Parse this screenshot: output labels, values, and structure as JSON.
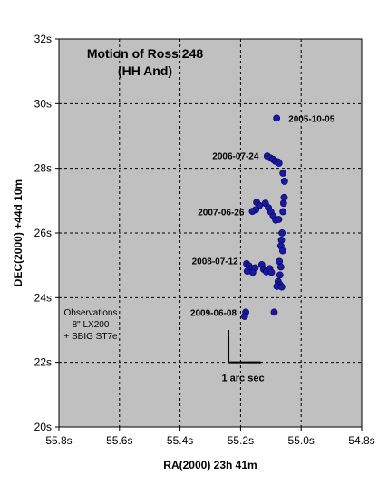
{
  "chart_data": {
    "type": "scatter",
    "title_line1": "Motion of Ross 248",
    "title_line2": "(HH And)",
    "xlabel": "RA(2000) 23h 41m",
    "ylabel": "DEC(2000) +44d 10m",
    "xlim": [
      55.8,
      54.8
    ],
    "ylim": [
      20,
      32
    ],
    "x_reversed": true,
    "x_ticks": [
      55.8,
      55.6,
      55.4,
      55.2,
      55.0,
      54.8
    ],
    "x_tick_labels": [
      "55.8s",
      "55.6s",
      "55.4s",
      "55.2s",
      "55.0s",
      "54.8s"
    ],
    "y_ticks": [
      20,
      22,
      24,
      26,
      28,
      30,
      32
    ],
    "y_tick_labels": [
      "20s",
      "22s",
      "24s",
      "26s",
      "28s",
      "30s",
      "32s"
    ],
    "grid": true,
    "plot_background": "#c0c0c0",
    "marker_color": "#1a1aa0",
    "points": [
      {
        "x": 55.081,
        "y": 29.55
      },
      {
        "x": 55.112,
        "y": 28.38
      },
      {
        "x": 55.102,
        "y": 28.32
      },
      {
        "x": 55.093,
        "y": 28.28
      },
      {
        "x": 55.085,
        "y": 28.22
      },
      {
        "x": 55.077,
        "y": 28.2
      },
      {
        "x": 55.073,
        "y": 28.16
      },
      {
        "x": 55.06,
        "y": 27.85
      },
      {
        "x": 55.055,
        "y": 27.6
      },
      {
        "x": 55.147,
        "y": 26.95
      },
      {
        "x": 55.138,
        "y": 26.85
      },
      {
        "x": 55.15,
        "y": 26.72
      },
      {
        "x": 55.161,
        "y": 26.67
      },
      {
        "x": 55.118,
        "y": 26.92
      },
      {
        "x": 55.108,
        "y": 26.78
      },
      {
        "x": 55.1,
        "y": 26.65
      },
      {
        "x": 55.092,
        "y": 26.52
      },
      {
        "x": 55.084,
        "y": 26.4
      },
      {
        "x": 55.074,
        "y": 26.42
      },
      {
        "x": 55.06,
        "y": 26.66
      },
      {
        "x": 55.058,
        "y": 26.92
      },
      {
        "x": 55.056,
        "y": 27.1
      },
      {
        "x": 55.063,
        "y": 26.0
      },
      {
        "x": 55.065,
        "y": 25.78
      },
      {
        "x": 55.067,
        "y": 25.6
      },
      {
        "x": 55.061,
        "y": 25.45
      },
      {
        "x": 55.072,
        "y": 25.12
      },
      {
        "x": 55.067,
        "y": 24.95
      },
      {
        "x": 55.07,
        "y": 24.7
      },
      {
        "x": 55.076,
        "y": 24.5
      },
      {
        "x": 55.07,
        "y": 24.4
      },
      {
        "x": 55.08,
        "y": 24.35
      },
      {
        "x": 55.064,
        "y": 24.33
      },
      {
        "x": 55.18,
        "y": 25.05
      },
      {
        "x": 55.172,
        "y": 24.98
      },
      {
        "x": 55.167,
        "y": 24.9
      },
      {
        "x": 55.178,
        "y": 24.82
      },
      {
        "x": 55.13,
        "y": 25.02
      },
      {
        "x": 55.124,
        "y": 24.88
      },
      {
        "x": 55.115,
        "y": 24.8
      },
      {
        "x": 55.104,
        "y": 24.9
      },
      {
        "x": 55.098,
        "y": 24.78
      },
      {
        "x": 55.152,
        "y": 24.92
      },
      {
        "x": 55.16,
        "y": 24.78
      },
      {
        "x": 55.183,
        "y": 23.55
      },
      {
        "x": 55.187,
        "y": 23.42
      },
      {
        "x": 55.089,
        "y": 23.55
      }
    ],
    "annotations": [
      {
        "text": "2005-10-05",
        "x": 55.06,
        "y": 29.55,
        "anchor": "start"
      },
      {
        "text": "2006-07-24",
        "x": 55.122,
        "y": 28.4,
        "anchor": "end"
      },
      {
        "text": "2007-06-26",
        "x": 55.17,
        "y": 26.66,
        "anchor": "end"
      },
      {
        "text": "2008-07-12",
        "x": 55.19,
        "y": 25.15,
        "anchor": "end"
      },
      {
        "text": "2009-06-08",
        "x": 55.195,
        "y": 23.55,
        "anchor": "end"
      }
    ],
    "notes": [
      "Observations",
      "8\" LX200",
      "+ SBIG ST7e"
    ],
    "scale_bar_label": "1 arc sec",
    "scale_bar_arcsec": 1
  }
}
